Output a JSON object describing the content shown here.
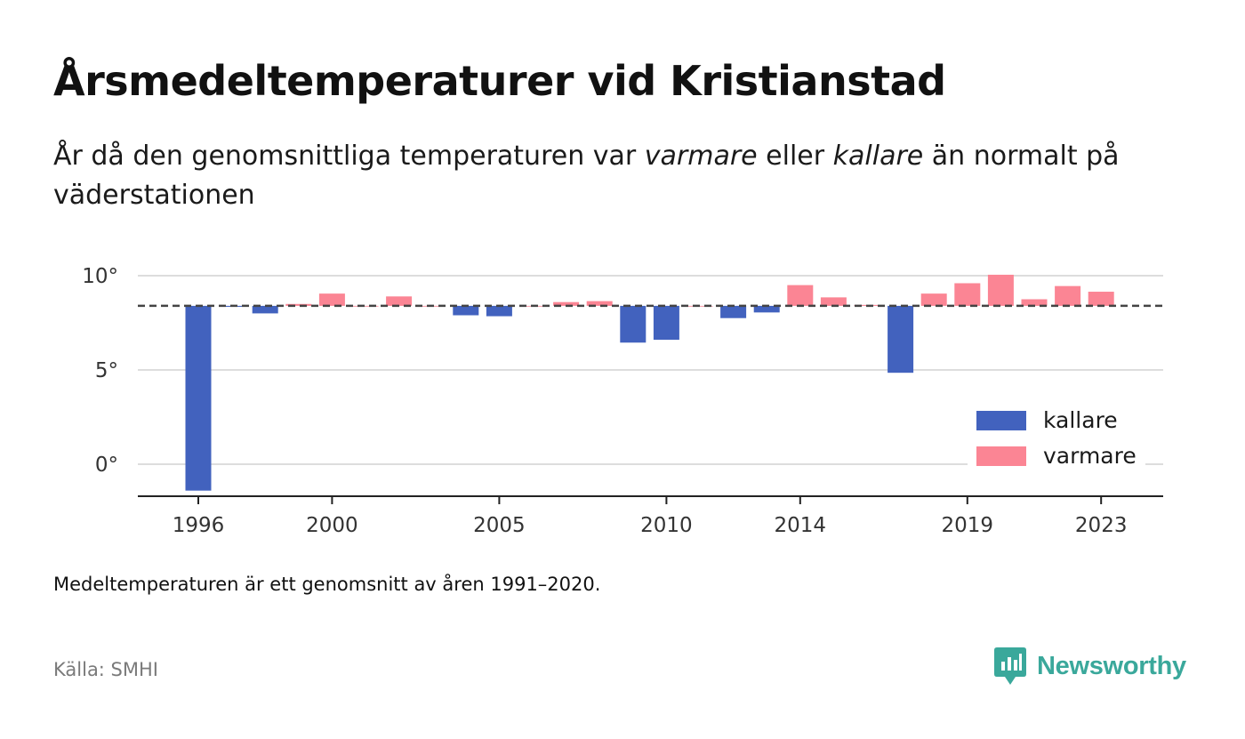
{
  "title": "Årsmedeltemperaturer vid Kristianstad",
  "subtitle": {
    "part1": "År då den genomsnittliga temperaturen var ",
    "warm_word": "varmare",
    "part2": " eller ",
    "cold_word": "kallare",
    "part3": " än normalt på väderstationen"
  },
  "footnote": "Medeltemperaturen är ett genomsnitt av åren 1991–2020.",
  "source": "Källa: SMHI",
  "brand": {
    "name": "Newsworthy",
    "icon": "newsworthy-logo-icon",
    "color": "#3aa89b"
  },
  "colors": {
    "cold": "#4262be",
    "warm": "#fb8594",
    "grid": "#dddddd",
    "axis": "#222222",
    "reference": "#444444"
  },
  "chart_data": {
    "type": "bar",
    "baseline": 8.4,
    "ylim": [
      -1.7,
      10.2
    ],
    "yticks": [
      0,
      5,
      10
    ],
    "ytick_labels": [
      "0°",
      "5°",
      "10°"
    ],
    "xticks": [
      1996,
      2000,
      2005,
      2010,
      2014,
      2019,
      2023
    ],
    "x": [
      1996,
      1997,
      1998,
      1999,
      2000,
      2001,
      2002,
      2003,
      2004,
      2005,
      2006,
      2007,
      2008,
      2009,
      2010,
      2011,
      2012,
      2013,
      2014,
      2015,
      2016,
      2017,
      2018,
      2019,
      2020,
      2021,
      2022,
      2023
    ],
    "values": [
      -1.4,
      8.35,
      8.0,
      8.5,
      9.05,
      8.4,
      8.9,
      8.4,
      7.9,
      7.85,
      8.4,
      8.6,
      8.65,
      6.45,
      6.6,
      8.4,
      7.75,
      8.05,
      9.5,
      8.85,
      8.45,
      4.85,
      9.05,
      9.6,
      10.05,
      8.75,
      9.45,
      9.15
    ],
    "legend": {
      "position": "bottom-right",
      "items": [
        {
          "key": "cold",
          "label": "kallare"
        },
        {
          "key": "warm",
          "label": "varmare"
        }
      ]
    }
  }
}
